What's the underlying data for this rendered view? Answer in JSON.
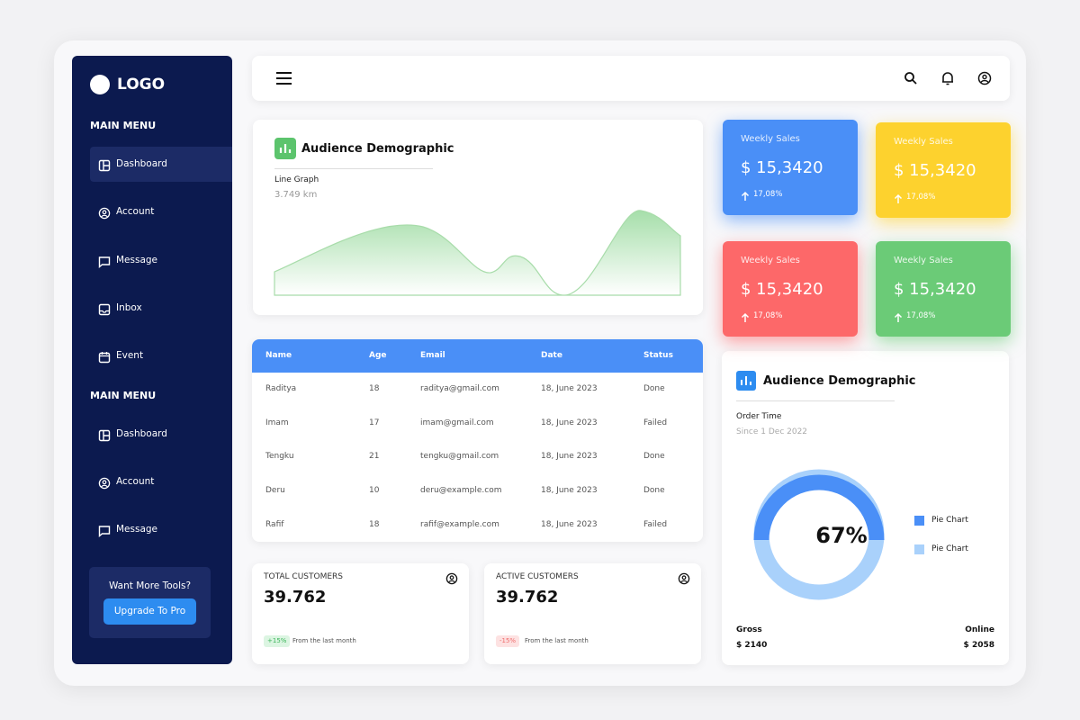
{
  "sidebar": {
    "logo": "LOGO",
    "menus": [
      {
        "title": "MAIN MENU",
        "items": [
          "Dashboard",
          "Account",
          "Message",
          "Inbox",
          "Event"
        ]
      },
      {
        "title": "MAIN MENU",
        "items": [
          "Dashboard",
          "Account",
          "Message"
        ]
      }
    ],
    "promo": {
      "text": "Want More Tools?",
      "button": "Upgrade To Pro"
    }
  },
  "line_card": {
    "title": "Audience Demographic",
    "subtitle": "Line Graph",
    "value": "3.749 km"
  },
  "sales_cards": [
    {
      "label": "Weekly Sales",
      "amount": "$ 15,3420",
      "change": "17,08%",
      "color": "#4a8ff7"
    },
    {
      "label": "Weekly Sales",
      "amount": "$ 15,3420",
      "change": "17,08%",
      "color": "#fdd22e"
    },
    {
      "label": "Weekly Sales",
      "amount": "$ 15,3420",
      "change": "17,08%",
      "color": "#fd6869"
    },
    {
      "label": "Weekly Sales",
      "amount": "$ 15,3420",
      "change": "17,08%",
      "color": "#6bcb77"
    }
  ],
  "table": {
    "columns": [
      "Name",
      "Age",
      "Email",
      "Date",
      "Status"
    ],
    "rows": [
      [
        "Raditya",
        "18",
        "raditya@gmail.com",
        "18, June 2023",
        "Done"
      ],
      [
        "Imam",
        "17",
        "imam@gmail.com",
        "18, June 2023",
        "Failed"
      ],
      [
        "Tengku",
        "21",
        "tengku@gmail.com",
        "18, June 2023",
        "Done"
      ],
      [
        "Deru",
        "10",
        "deru@example.com",
        "18, June 2023",
        "Done"
      ],
      [
        "Rafif",
        "18",
        "rafif@example.com",
        "18, June 2023",
        "Failed"
      ]
    ]
  },
  "stats": [
    {
      "label": "TOTAL CUSTOMERS",
      "value": "39.762",
      "badge": "+15%",
      "note": "From the last month",
      "badge_color": "#3cb55a",
      "badge_bg": "#dcf5e2"
    },
    {
      "label": "ACTIVE CUSTOMERS",
      "value": "39.762",
      "badge": "-15%",
      "note": "From the last month",
      "badge_color": "#f06b6b",
      "badge_bg": "#fde2e2"
    }
  ],
  "donut_card": {
    "title": "Audience Demographic",
    "subtitle": "Order Time",
    "since": "Since 1 Dec 2022",
    "center": "67%",
    "legend": [
      {
        "label": "Pie Chart",
        "color": "#4a8ff7"
      },
      {
        "label": "Pie Chart",
        "color": "#a9d1fb"
      }
    ],
    "footer": [
      {
        "label": "Gross",
        "value": "$ 2140"
      },
      {
        "label": "Online",
        "value": "$ 2058"
      }
    ]
  }
}
